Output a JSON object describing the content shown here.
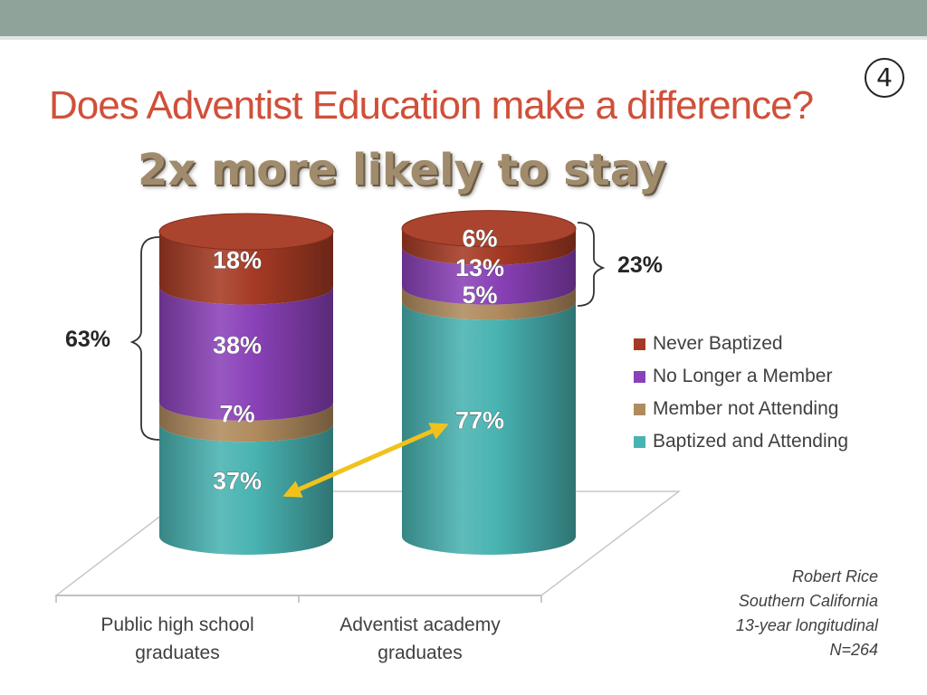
{
  "slide": {
    "number": "4",
    "title": "Does Adventist Education make a difference?",
    "subtitle": "2x more likely to stay"
  },
  "colors": {
    "Never Baptized": "#a53a24",
    "No Longer a Member": "#8a41b8",
    "Member not Attending": "#b08b5e",
    "Baptized and Attending": "#48b3b1",
    "title": "#d0503a",
    "arrow": "#f2c21b"
  },
  "chart_data": {
    "type": "bar",
    "stacked": true,
    "three_d": true,
    "categories": [
      "Public high school graduates",
      "Adventist academy graduates"
    ],
    "series": [
      {
        "name": "Baptized and Attending",
        "values": [
          37,
          77
        ]
      },
      {
        "name": "Member not Attending",
        "values": [
          7,
          5
        ]
      },
      {
        "name": "No Longer a Member",
        "values": [
          38,
          13
        ]
      },
      {
        "name": "Never Baptized",
        "values": [
          18,
          6
        ]
      }
    ],
    "value_labels": [
      [
        "37%",
        "7%",
        "38%",
        "18%"
      ],
      [
        "77%",
        "5%",
        "13%",
        "6%"
      ]
    ],
    "brackets": [
      {
        "label": "63%",
        "category": "Public high school graduates",
        "series": [
          "Member not Attending",
          "No Longer a Member",
          "Never Baptized"
        ]
      },
      {
        "label": "23%",
        "category": "Adventist academy graduates",
        "series": [
          "Member not Attending",
          "No Longer a Member",
          "Never Baptized"
        ]
      }
    ],
    "annotation": "double arrow linking 37% and 77%",
    "legend": [
      "Never Baptized",
      "No Longer a Member",
      "Member not Attending",
      "Baptized and Attending"
    ],
    "legend_position": "right",
    "ylim": [
      0,
      100
    ]
  },
  "source": {
    "line1": "Robert Rice",
    "line2": "Southern California",
    "line3": "13-year longitudinal",
    "line4": "N=264"
  }
}
